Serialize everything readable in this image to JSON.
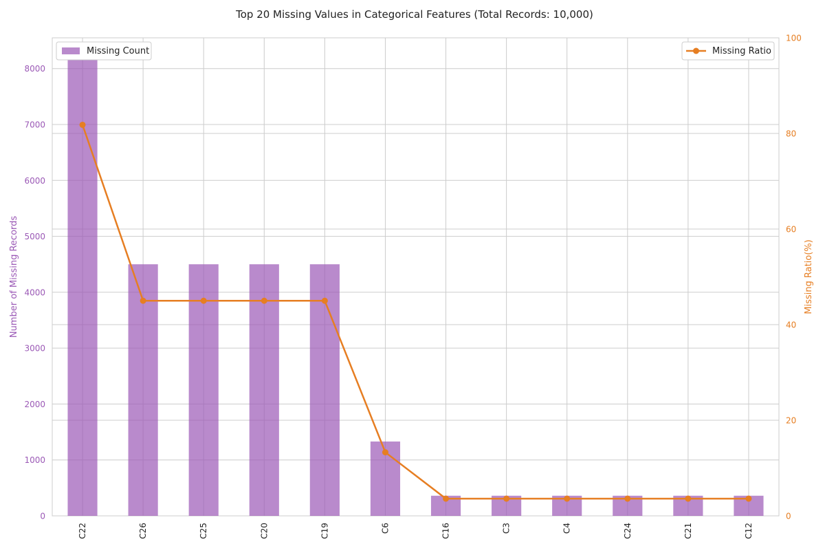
{
  "chart_data": {
    "type": "bar",
    "title": "Top 20 Missing Values in Categorical Features (Total Records: 10,000)",
    "categories": [
      "C22",
      "C26",
      "C25",
      "C20",
      "C19",
      "C6",
      "C16",
      "C3",
      "C4",
      "C24",
      "C21",
      "C12"
    ],
    "series": [
      {
        "name": "Missing Count",
        "type": "bar",
        "axis": "left",
        "values": [
          8180,
          4500,
          4500,
          4500,
          4500,
          1330,
          360,
          360,
          360,
          360,
          360,
          360
        ]
      },
      {
        "name": "Missing Ratio",
        "type": "line",
        "axis": "right",
        "values": [
          81.8,
          45.0,
          45.0,
          45.0,
          45.0,
          13.3,
          3.6,
          3.6,
          3.6,
          3.6,
          3.6,
          3.6
        ]
      }
    ],
    "ylabel": "Number of Missing Records",
    "ylabel_right": "Missing Ratio(%)",
    "xlabel": "",
    "ylim": [
      0,
      8550
    ],
    "ylim_right": [
      0,
      100
    ],
    "yticks": [
      0,
      1000,
      2000,
      3000,
      4000,
      5000,
      6000,
      7000,
      8000
    ],
    "yticks_right": [
      0,
      20,
      40,
      60,
      80,
      100
    ],
    "grid": true,
    "legend_bar_placement": "top-left",
    "legend_line_placement": "top-right",
    "colors": {
      "bar": "#9b59b6",
      "line": "#e67e22",
      "left_axis": "#9b59b6",
      "right_axis": "#e67e22",
      "grid": "#cccccc",
      "title": "#222222"
    }
  }
}
